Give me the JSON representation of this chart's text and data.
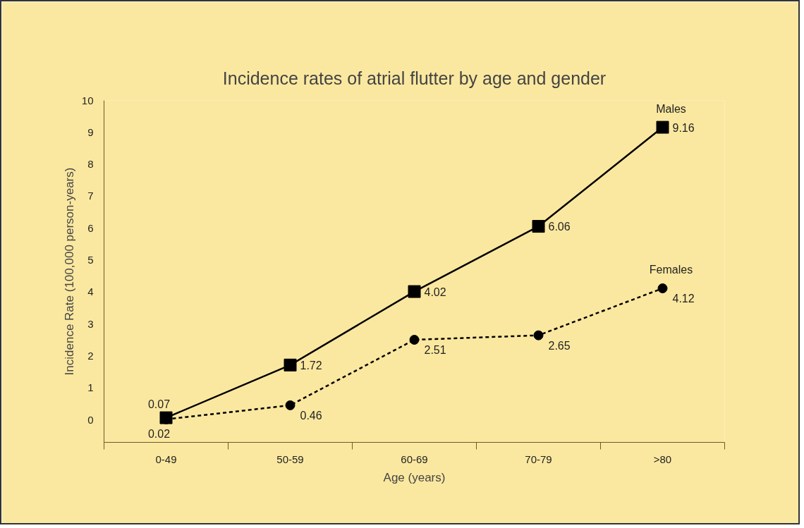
{
  "chart_data": {
    "type": "line",
    "title": "Incidence rates of atrial flutter by age and gender",
    "xlabel": "Age (years)",
    "ylabel": "Incidence Rate (100,000 person-years)",
    "categories": [
      "0-49",
      "50-59",
      "60-69",
      "70-79",
      ">80"
    ],
    "series": [
      {
        "name": "Males",
        "color": "#000000",
        "values": [
          0.07,
          1.72,
          4.02,
          6.06,
          9.16
        ],
        "marker": "square",
        "line_style": "solid"
      },
      {
        "name": "Females",
        "color": "#000000",
        "values": [
          0.02,
          0.46,
          2.51,
          2.65,
          4.12
        ],
        "marker": "circle",
        "line_style": "dashed"
      }
    ],
    "ylim": [
      -0.7,
      10
    ],
    "yticks": [
      0,
      1,
      2,
      3,
      4,
      5,
      6,
      7,
      8,
      9,
      10
    ],
    "grid": false,
    "data_labels": true
  }
}
